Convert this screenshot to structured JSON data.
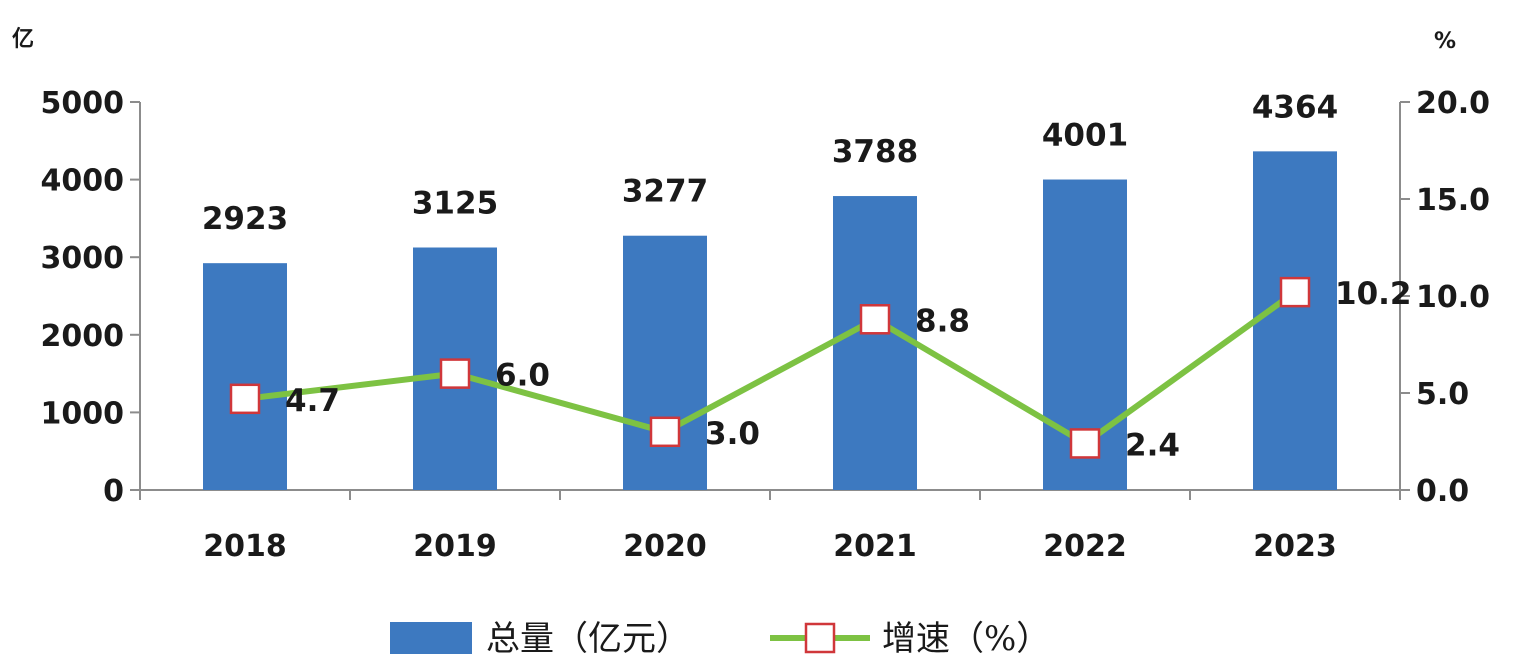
{
  "chart_data": {
    "type": "bar",
    "categories": [
      "2018",
      "2019",
      "2020",
      "2021",
      "2022",
      "2023"
    ],
    "series": [
      {
        "name": "总量（亿元）",
        "type": "bar",
        "axis": "left",
        "values": [
          2923,
          3125,
          3277,
          3788,
          4001,
          4364
        ],
        "labels": [
          "2923",
          "3125",
          "3277",
          "3788",
          "4001",
          "4364"
        ],
        "color": "#3d79c0"
      },
      {
        "name": "增速（%）",
        "type": "line",
        "axis": "right",
        "values": [
          4.7,
          6.0,
          3.0,
          8.8,
          2.4,
          10.2
        ],
        "labels": [
          "4.7",
          "6.0",
          "3.0",
          "8.8",
          "2.4",
          "10.2"
        ],
        "color": "#7dc243",
        "marker_fill": "#ffffff",
        "marker_stroke": "#d0373a"
      }
    ],
    "y_left": {
      "unit": "亿",
      "ylim": [
        0,
        5000
      ],
      "ticks": [
        "0",
        "1000",
        "2000",
        "3000",
        "4000",
        "5000"
      ]
    },
    "y_right": {
      "unit": "%",
      "ylim": [
        0,
        20
      ],
      "ticks": [
        "0.0",
        "5.0",
        "10.0",
        "15.0",
        "20.0"
      ]
    },
    "grid": false,
    "legend": {
      "position": "bottom",
      "items": [
        "总量（亿元）",
        "增速（%）"
      ]
    }
  }
}
